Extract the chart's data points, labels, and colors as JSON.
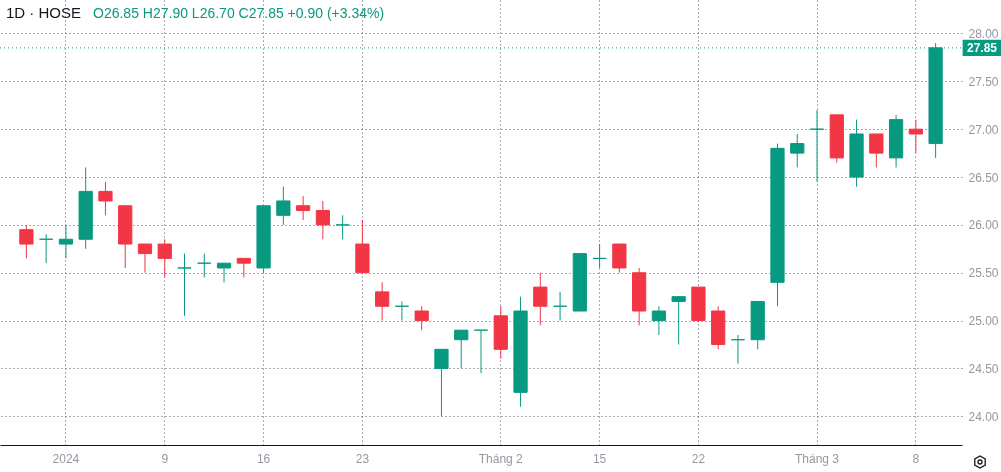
{
  "chart_data": {
    "type": "candlestick",
    "title": "1D · HOSE",
    "subtitle": "O26.85 H27.90 L26.70 C27.85 +0.90 (+3.34%)",
    "categories": [
      null,
      null,
      "2024",
      null,
      null,
      null,
      null,
      "9",
      null,
      null,
      null,
      null,
      "16",
      null,
      null,
      null,
      null,
      "23",
      null,
      null,
      null,
      null,
      null,
      null,
      "Tháng 2",
      null,
      null,
      null,
      null,
      "15",
      null,
      null,
      null,
      null,
      "22",
      null,
      null,
      null,
      null,
      null,
      "Tháng 3",
      null,
      null,
      null,
      null,
      "8",
      null
    ],
    "ohlc": [
      [
        25.95,
        26.0,
        25.65,
        25.8
      ],
      [
        25.85,
        25.9,
        25.6,
        25.85
      ],
      [
        25.8,
        26.0,
        25.65,
        25.85
      ],
      [
        25.85,
        26.6,
        25.75,
        26.35
      ],
      [
        26.35,
        26.45,
        26.1,
        26.25
      ],
      [
        26.2,
        26.2,
        25.55,
        25.8
      ],
      [
        25.8,
        25.8,
        25.5,
        25.7
      ],
      [
        25.8,
        25.85,
        25.45,
        25.65
      ],
      [
        25.55,
        25.7,
        25.05,
        25.55
      ],
      [
        25.6,
        25.7,
        25.45,
        25.6
      ],
      [
        25.55,
        25.6,
        25.4,
        25.6
      ],
      [
        25.65,
        25.65,
        25.45,
        25.6
      ],
      [
        25.55,
        26.2,
        25.5,
        26.2
      ],
      [
        26.1,
        26.4,
        26.0,
        26.25
      ],
      [
        26.2,
        26.3,
        26.05,
        26.15
      ],
      [
        26.15,
        26.25,
        25.85,
        26.0
      ],
      [
        26.0,
        26.1,
        25.85,
        26.0
      ],
      [
        25.8,
        26.05,
        25.5,
        25.5
      ],
      [
        25.3,
        25.4,
        25.0,
        25.15
      ],
      [
        25.15,
        25.2,
        25.0,
        25.15
      ],
      [
        25.1,
        25.15,
        24.9,
        25.0
      ],
      [
        24.5,
        24.7,
        24.0,
        24.7
      ],
      [
        24.8,
        24.9,
        24.5,
        24.9
      ],
      [
        24.9,
        24.9,
        24.45,
        24.9
      ],
      [
        25.05,
        25.15,
        24.6,
        24.7
      ],
      [
        24.25,
        25.25,
        24.1,
        25.1
      ],
      [
        25.35,
        25.5,
        24.95,
        25.15
      ],
      [
        25.15,
        25.3,
        25.0,
        25.15
      ],
      [
        25.1,
        25.7,
        25.1,
        25.7
      ],
      [
        25.65,
        25.8,
        25.55,
        25.65
      ],
      [
        25.8,
        25.8,
        25.5,
        25.55
      ],
      [
        25.5,
        25.55,
        24.95,
        25.1
      ],
      [
        25.0,
        25.15,
        24.85,
        25.1
      ],
      [
        25.2,
        25.25,
        24.75,
        25.25
      ],
      [
        25.35,
        25.35,
        25.0,
        25.0
      ],
      [
        25.1,
        25.15,
        24.7,
        24.75
      ],
      [
        24.8,
        24.85,
        24.55,
        24.8
      ],
      [
        24.8,
        25.2,
        24.7,
        25.2
      ],
      [
        25.4,
        26.85,
        25.15,
        26.8
      ],
      [
        26.75,
        26.95,
        26.6,
        26.85
      ],
      [
        27.0,
        27.2,
        26.45,
        27.0
      ],
      [
        27.15,
        27.15,
        26.65,
        26.7
      ],
      [
        26.5,
        27.1,
        26.4,
        26.95
      ],
      [
        26.95,
        26.95,
        26.6,
        26.75
      ],
      [
        26.7,
        27.15,
        26.6,
        27.1
      ],
      [
        27.0,
        27.1,
        26.75,
        26.95
      ],
      [
        26.85,
        27.9,
        26.7,
        27.85
      ]
    ],
    "colors": [
      "#f23645",
      "#089981",
      "#089981",
      "#089981",
      "#f23645",
      "#f23645",
      "#f23645",
      "#f23645",
      "#089981",
      "#089981",
      "#089981",
      "#f23645",
      "#089981",
      "#089981",
      "#f23645",
      "#f23645",
      "#089981",
      "#f23645",
      "#f23645",
      "#089981",
      "#f23645",
      "#089981",
      "#089981",
      "#089981",
      "#f23645",
      "#089981",
      "#f23645",
      "#089981",
      "#089981",
      "#089981",
      "#f23645",
      "#f23645",
      "#089981",
      "#089981",
      "#f23645",
      "#f23645",
      "#089981",
      "#089981",
      "#089981",
      "#089981",
      "#089981",
      "#f23645",
      "#089981",
      "#f23645",
      "#089981",
      "#f23645",
      "#089981"
    ],
    "ylim": [
      23.7,
      28.35
    ],
    "yticks": [
      {
        "value": 24,
        "label": "24.00"
      },
      {
        "value": 24.5,
        "label": "24.50"
      },
      {
        "value": 25,
        "label": "25.00"
      },
      {
        "value": 25.5,
        "label": "25.50"
      },
      {
        "value": 26,
        "label": "26.00"
      },
      {
        "value": 26.5,
        "label": "26.50"
      },
      {
        "value": 27,
        "label": "27.00"
      },
      {
        "value": 27.5,
        "label": "27.50"
      },
      {
        "value": 28,
        "label": "28.00"
      }
    ],
    "ref_lines": [
      {
        "axis": "y",
        "value": 27.85,
        "label": "27.85",
        "color": "#089981",
        "line_style": "dotted"
      }
    ],
    "grid": true
  }
}
